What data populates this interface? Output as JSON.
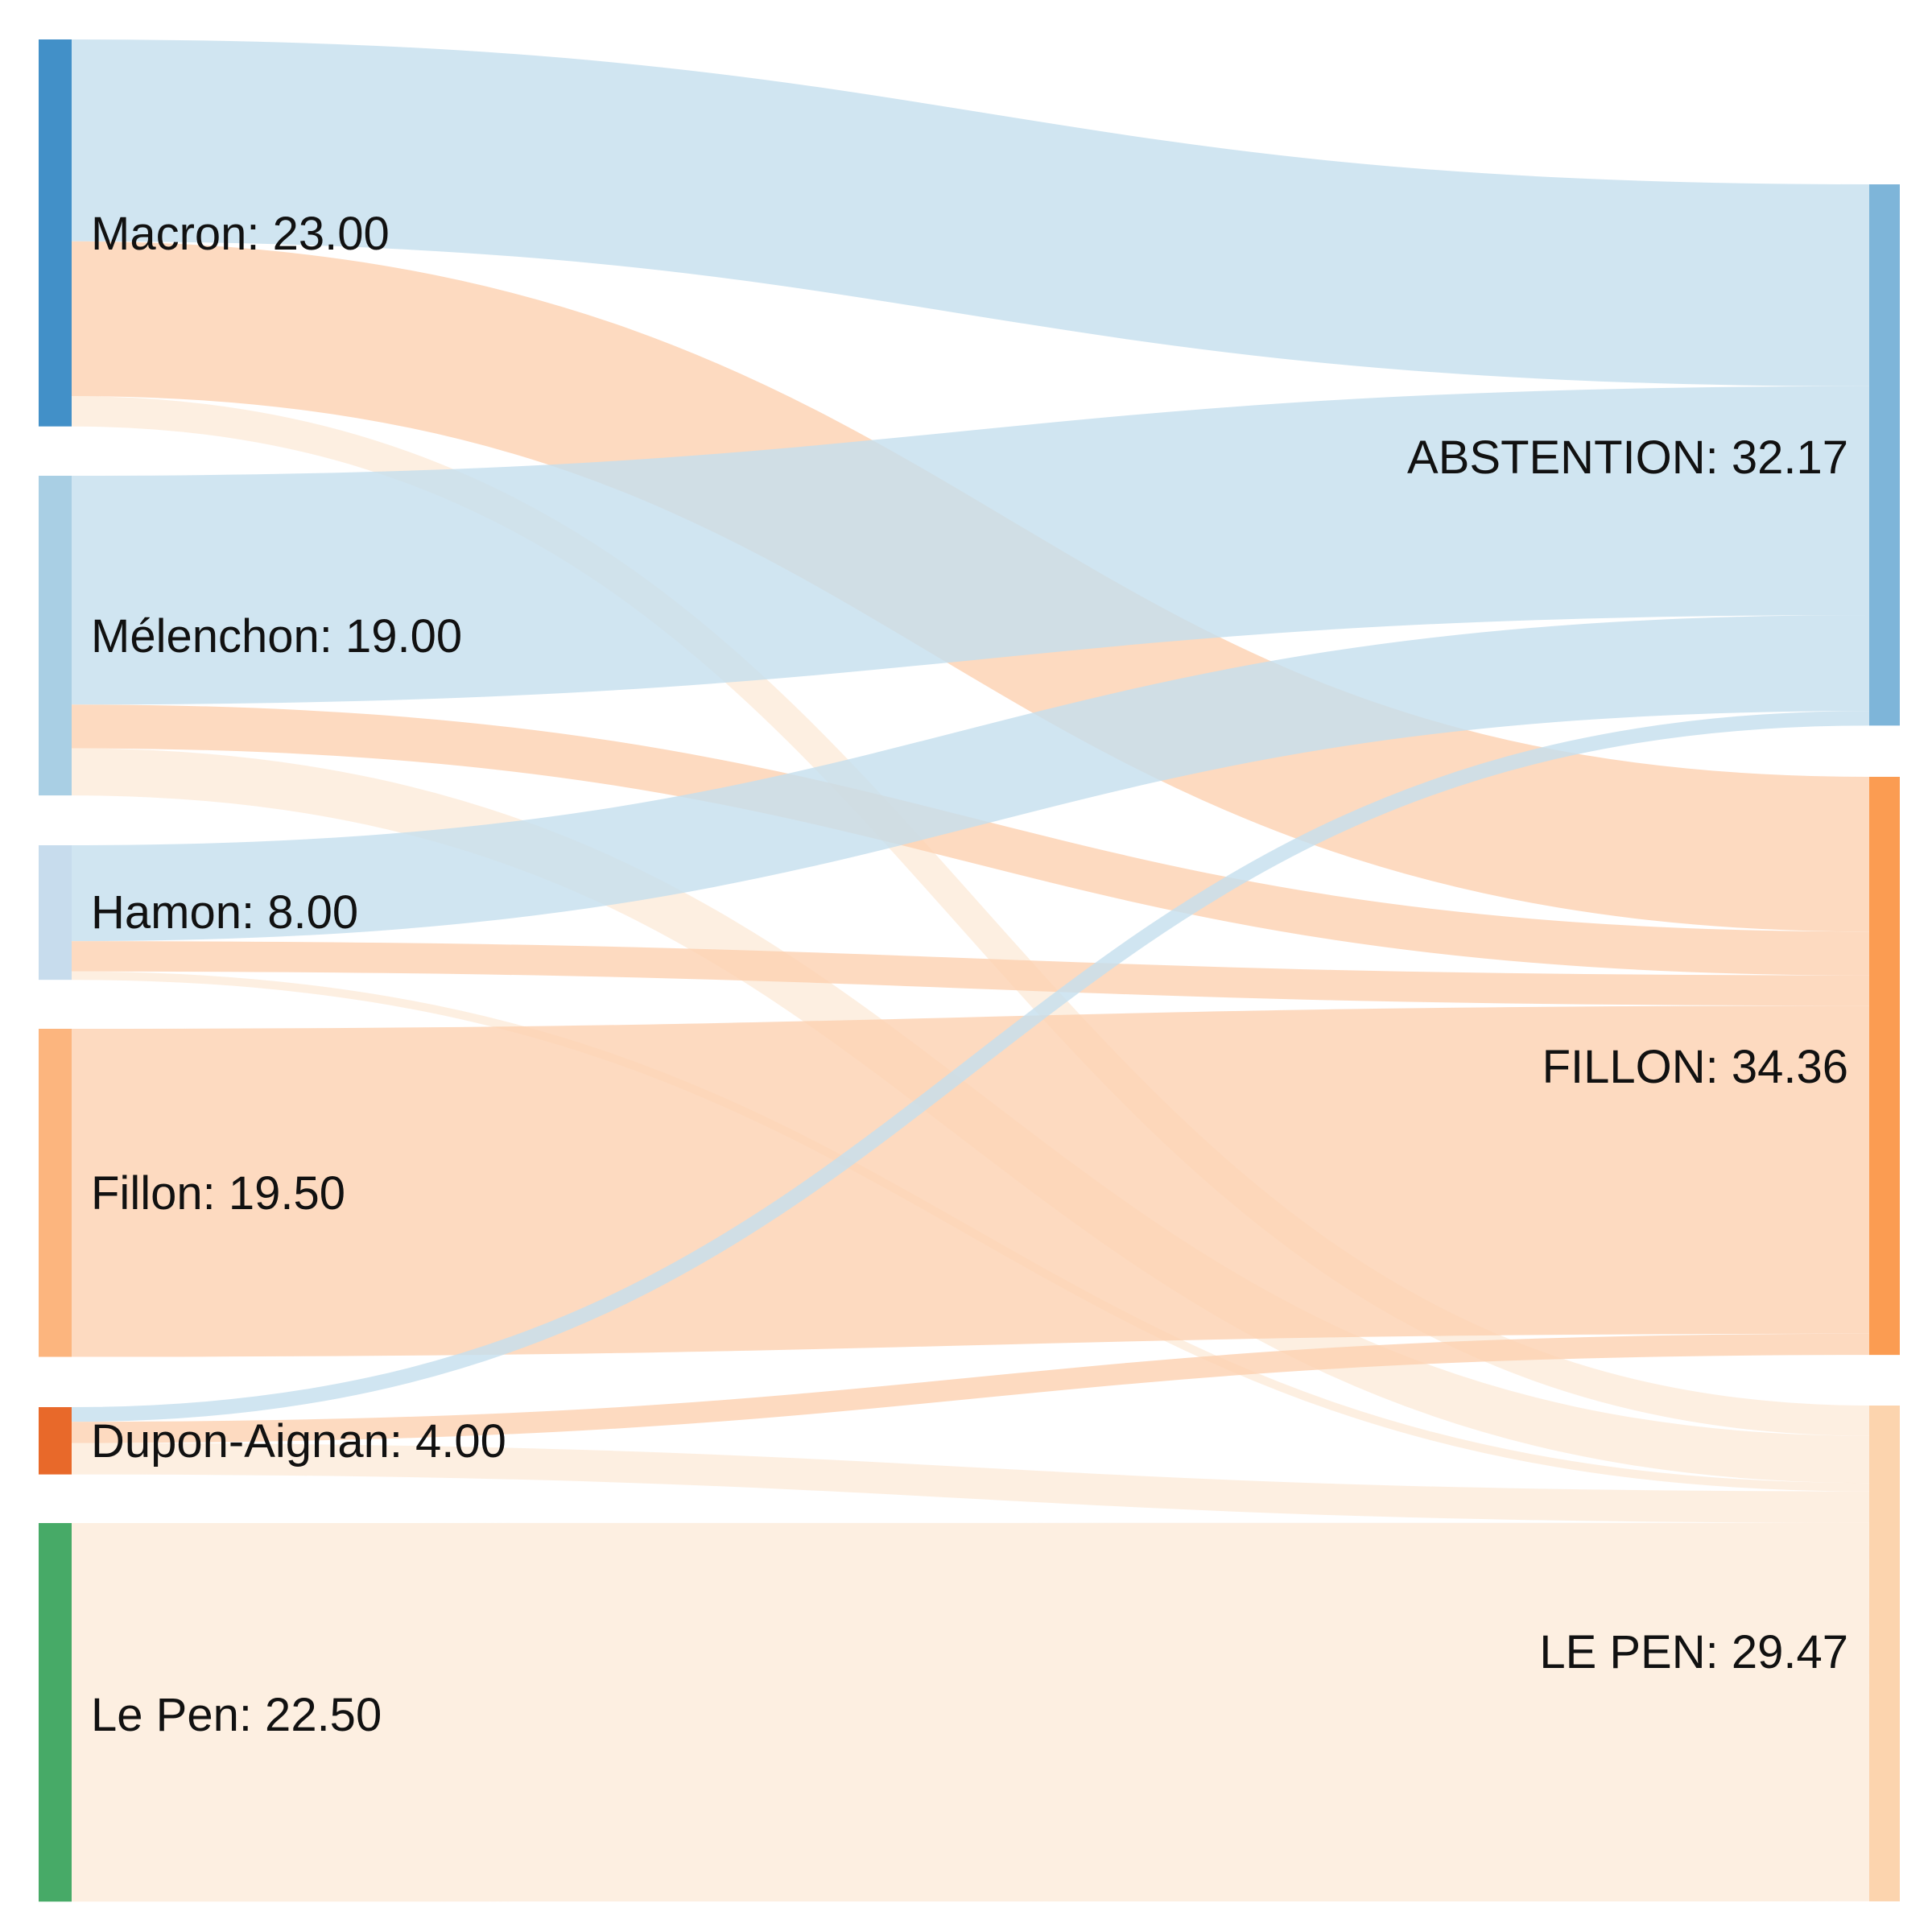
{
  "chart_data": {
    "type": "sankey",
    "title": "",
    "units": "%",
    "sources": [
      {
        "id": "macron",
        "label": "Macron: 23.00",
        "name": "Macron",
        "value": 23.0,
        "color": "#4290c8"
      },
      {
        "id": "melenchon",
        "label": "Mélenchon: 19.00",
        "name": "Mélenchon",
        "value": 19.0,
        "color": "#a9cfe4"
      },
      {
        "id": "hamon",
        "label": "Hamon: 8.00",
        "name": "Hamon",
        "value": 8.0,
        "color": "#c7dced"
      },
      {
        "id": "fillon",
        "label": "Fillon: 19.50",
        "name": "Fillon",
        "value": 19.5,
        "color": "#fcb57e"
      },
      {
        "id": "dupon",
        "label": "Dupon-Aignan: 4.00",
        "name": "Dupon-Aignan",
        "value": 4.0,
        "color": "#e8692a"
      },
      {
        "id": "lepen",
        "label": "Le Pen: 22.50",
        "name": "Le Pen",
        "value": 22.5,
        "color": "#47aa67"
      }
    ],
    "targets": [
      {
        "id": "abstention",
        "label": "ABSTENTION: 32.17",
        "name": "ABSTENTION",
        "value": 32.17,
        "color": "#7eb5d9"
      },
      {
        "id": "fillon2",
        "label": "FILLON: 34.36",
        "name": "FILLON",
        "value": 34.36,
        "color": "#fb9c52"
      },
      {
        "id": "lepen2",
        "label": "LE PEN: 29.47",
        "name": "LE PEN",
        "value": 29.47,
        "color": "#fcd4ae"
      }
    ],
    "link_colors": {
      "abstention": "#c4dfee",
      "fillon2": "#fcd1b0",
      "lepen2": "#fcebd9"
    },
    "links": [
      {
        "source": "macron",
        "target": "abstention",
        "value": 12.0
      },
      {
        "source": "macron",
        "target": "fillon2",
        "value": 9.2
      },
      {
        "source": "macron",
        "target": "lepen2",
        "value": 1.8
      },
      {
        "source": "melenchon",
        "target": "abstention",
        "value": 13.6
      },
      {
        "source": "melenchon",
        "target": "fillon2",
        "value": 2.6
      },
      {
        "source": "melenchon",
        "target": "lepen2",
        "value": 2.8
      },
      {
        "source": "hamon",
        "target": "abstention",
        "value": 5.7
      },
      {
        "source": "hamon",
        "target": "fillon2",
        "value": 1.8
      },
      {
        "source": "hamon",
        "target": "lepen2",
        "value": 0.5
      },
      {
        "source": "fillon",
        "target": "fillon2",
        "value": 19.5
      },
      {
        "source": "dupon",
        "target": "abstention",
        "value": 0.87
      },
      {
        "source": "dupon",
        "target": "fillon2",
        "value": 1.26
      },
      {
        "source": "dupon",
        "target": "lepen2",
        "value": 1.87
      },
      {
        "source": "lepen",
        "target": "lepen2",
        "value": 22.5
      }
    ]
  }
}
